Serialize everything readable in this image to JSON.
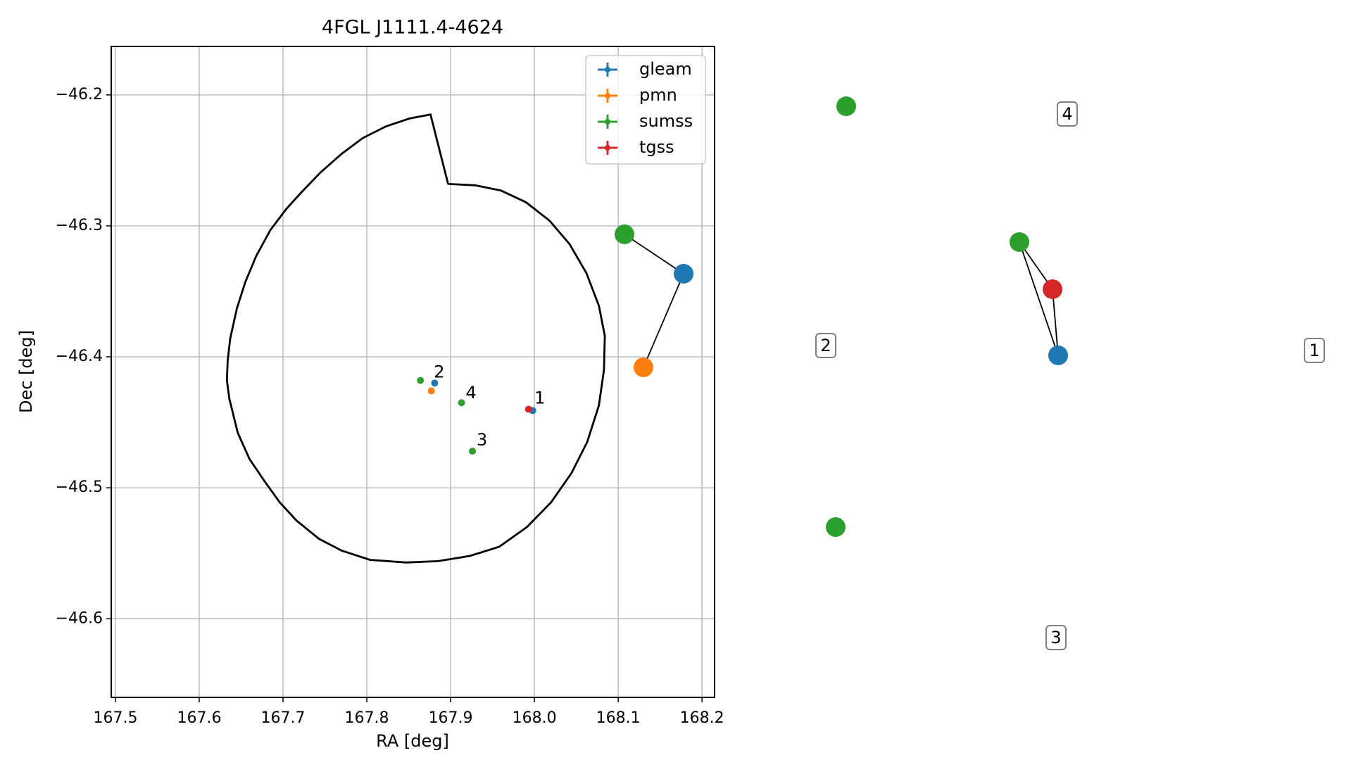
{
  "colors": {
    "gleam": "#1f77b4",
    "pmn": "#ff7f0e",
    "sumss": "#2ca02c",
    "tgss": "#d62728",
    "ellipse": "#000000",
    "grid": "#b0b0b0",
    "link": "#000000"
  },
  "chart_data": [
    {
      "type": "scatter",
      "title": "4FGL J1111.4-4624",
      "xlabel": "RA [deg]",
      "ylabel": "Dec [deg]",
      "xlim": [
        167.495,
        168.215
      ],
      "ylim": [
        -46.66,
        -46.163
      ],
      "x_ticks": [
        {
          "value": 167.5,
          "label": "167.5"
        },
        {
          "value": 167.6,
          "label": "167.6"
        },
        {
          "value": 167.7,
          "label": "167.7"
        },
        {
          "value": 167.8,
          "label": "167.8"
        },
        {
          "value": 167.9,
          "label": "167.9"
        },
        {
          "value": 168.0,
          "label": "168.0"
        },
        {
          "value": 168.1,
          "label": "168.1"
        },
        {
          "value": 168.2,
          "label": "168.2"
        }
      ],
      "y_ticks": [
        {
          "value": -46.2,
          "label": "−46.2"
        },
        {
          "value": -46.3,
          "label": "−46.3"
        },
        {
          "value": -46.4,
          "label": "−46.4"
        },
        {
          "value": -46.5,
          "label": "−46.5"
        },
        {
          "value": -46.6,
          "label": "−46.6"
        }
      ],
      "grid": true,
      "legend_position": "top-right",
      "series": [
        {
          "name": "gleam",
          "points": [
            {
              "x": 167.881,
              "y": -46.42
            },
            {
              "x": 167.998,
              "y": -46.441
            }
          ]
        },
        {
          "name": "pmn",
          "points": [
            {
              "x": 167.877,
              "y": -46.426
            }
          ]
        },
        {
          "name": "sumss",
          "points": [
            {
              "x": 167.864,
              "y": -46.418
            },
            {
              "x": 167.913,
              "y": -46.435
            },
            {
              "x": 167.926,
              "y": -46.472
            }
          ]
        },
        {
          "name": "tgss",
          "points": [
            {
              "x": 167.993,
              "y": -46.44
            }
          ]
        }
      ],
      "ellipse": {
        "center": [
          167.86,
          -46.412
        ],
        "polygon": [
          [
            167.897,
            -46.268
          ],
          [
            167.929,
            -46.269
          ],
          [
            167.96,
            -46.273
          ],
          [
            167.99,
            -46.282
          ],
          [
            168.018,
            -46.296
          ],
          [
            168.042,
            -46.314
          ],
          [
            168.062,
            -46.336
          ],
          [
            168.077,
            -46.361
          ],
          [
            168.084,
            -46.384
          ],
          [
            168.083,
            -46.41
          ],
          [
            168.077,
            -46.437
          ],
          [
            168.063,
            -46.465
          ],
          [
            168.044,
            -46.489
          ],
          [
            168.02,
            -46.511
          ],
          [
            167.991,
            -46.53
          ],
          [
            167.958,
            -46.545
          ],
          [
            167.923,
            -46.552
          ],
          [
            167.885,
            -46.556
          ],
          [
            167.847,
            -46.557
          ],
          [
            167.804,
            -46.555
          ],
          [
            167.77,
            -46.548
          ],
          [
            167.743,
            -46.539
          ],
          [
            167.716,
            -46.525
          ],
          [
            167.696,
            -46.511
          ],
          [
            167.678,
            -46.495
          ],
          [
            167.66,
            -46.478
          ],
          [
            167.646,
            -46.458
          ],
          [
            167.636,
            -46.432
          ],
          [
            167.633,
            -46.418
          ],
          [
            167.634,
            -46.403
          ],
          [
            167.637,
            -46.386
          ],
          [
            167.645,
            -46.363
          ],
          [
            167.655,
            -46.343
          ],
          [
            167.668,
            -46.323
          ],
          [
            167.685,
            -46.303
          ],
          [
            167.704,
            -46.287
          ],
          [
            167.721,
            -46.275
          ],
          [
            167.745,
            -46.259
          ],
          [
            167.77,
            -46.245
          ],
          [
            167.795,
            -46.233
          ],
          [
            167.823,
            -46.224
          ],
          [
            167.851,
            -46.218
          ],
          [
            167.876,
            -46.215
          ],
          [
            167.897,
            -46.268
          ]
        ]
      },
      "labels": [
        {
          "text": "2",
          "x": 167.88,
          "y": -46.412
        },
        {
          "text": "4",
          "x": 167.918,
          "y": -46.428
        },
        {
          "text": "1",
          "x": 168.0,
          "y": -46.432
        },
        {
          "text": "3",
          "x": 167.931,
          "y": -46.464
        }
      ]
    },
    {
      "type": "scatter",
      "groups": [
        {
          "label": "1",
          "points": [
            {
              "catalog": "sumss",
              "x": 1448,
              "y": 344
            },
            {
              "catalog": "tgss",
              "x": 1495,
              "y": 411
            },
            {
              "catalog": "gleam",
              "x": 1503,
              "y": 505
            }
          ],
          "links": [
            [
              0,
              1
            ],
            [
              0,
              2
            ],
            [
              1,
              2
            ]
          ]
        },
        {
          "label": "2",
          "points": [
            {
              "catalog": "sumss",
              "x": 887,
              "y": 333
            },
            {
              "catalog": "gleam",
              "x": 971,
              "y": 389
            },
            {
              "catalog": "pmn",
              "x": 914,
              "y": 522
            }
          ],
          "links": [
            [
              0,
              1
            ],
            [
              1,
              2
            ]
          ]
        },
        {
          "label": "3",
          "points": [
            {
              "catalog": "sumss",
              "x": 1187,
              "y": 749
            }
          ],
          "links": []
        },
        {
          "label": "4",
          "points": [
            {
              "catalog": "sumss",
              "x": 1202,
              "y": 151
            }
          ],
          "links": []
        }
      ]
    }
  ]
}
